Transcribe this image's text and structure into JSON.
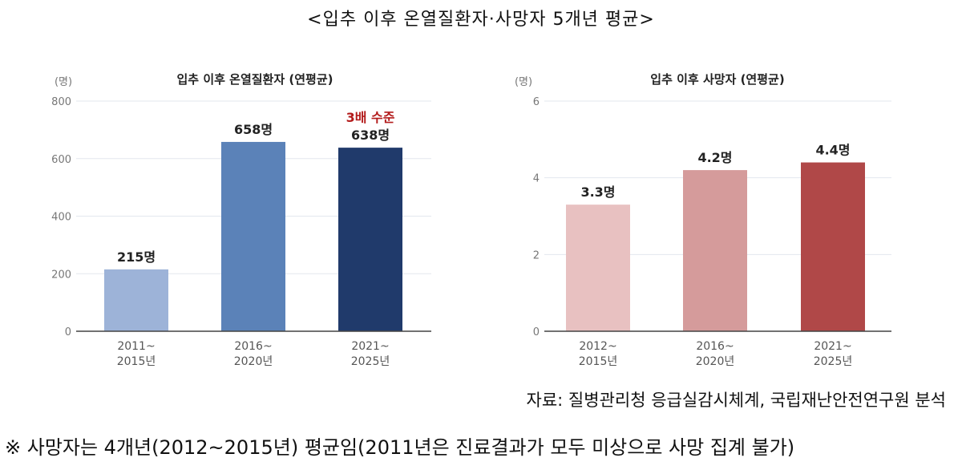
{
  "title": "<입추 이후 온열질환자·사망자 5개년 평균>",
  "source": "자료: 질병관리청 응급실감시체계, 국립재난안전연구원 분석",
  "footnote": "※ 사망자는 4개년(2012~2015년) 평균임(2011년은 진료결과가 모두 미상으로 사망 집계 불가)",
  "chart_data": [
    {
      "type": "bar",
      "title": "입추 이후 온열질환자 (연평균)",
      "ylabel": "(명)",
      "ylim": [
        0,
        800
      ],
      "yticks": [
        0,
        200,
        400,
        600,
        800
      ],
      "categories": [
        [
          "2011~",
          "2015년"
        ],
        [
          "2016~",
          "2020년"
        ],
        [
          "2021~",
          "2025년"
        ]
      ],
      "values": [
        215,
        658,
        638
      ],
      "data_labels": [
        "215명",
        "658명",
        "638명"
      ],
      "annotations": [
        {
          "category_index": 2,
          "text": "3배 수준"
        }
      ],
      "colors": [
        "#9db3d8",
        "#5b82b8",
        "#203a6b"
      ],
      "grid": true
    },
    {
      "type": "bar",
      "title": "입추 이후 사망자 (연평균)",
      "ylabel": "(명)",
      "ylim": [
        0,
        6
      ],
      "yticks": [
        0,
        2,
        4,
        6
      ],
      "categories": [
        [
          "2012~",
          "2015년"
        ],
        [
          "2016~",
          "2020년"
        ],
        [
          "2021~",
          "2025년"
        ]
      ],
      "values": [
        3.3,
        4.2,
        4.4
      ],
      "data_labels": [
        "3.3명",
        "4.2명",
        "4.4명"
      ],
      "annotations": [],
      "colors": [
        "#e8c1c1",
        "#d59b9b",
        "#b04848"
      ],
      "grid": true
    }
  ]
}
